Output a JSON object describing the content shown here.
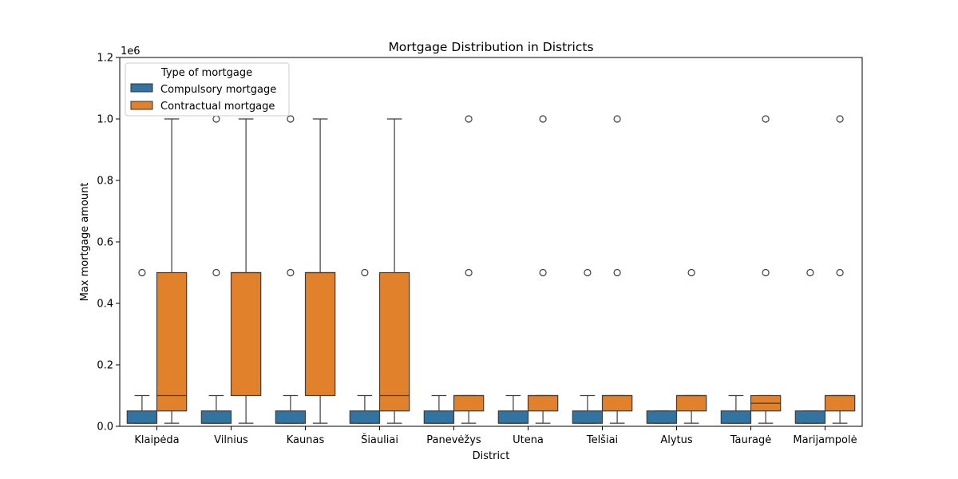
{
  "chart_data": {
    "type": "box",
    "title": "Mortgage Distribution in Districts",
    "xlabel": "District",
    "ylabel": "Max mortgage amount",
    "y_offset_label": "1e6",
    "ylim": [
      0,
      1.2
    ],
    "yticks": [
      "0.0",
      "0.2",
      "0.4",
      "0.6",
      "0.8",
      "1.0",
      "1.2"
    ],
    "legend": {
      "title": "Type of mortgage",
      "position": "upper-left"
    },
    "categories": [
      "Klaipėda",
      "Vilnius",
      "Kaunas",
      "Šiauliai",
      "Panevėžys",
      "Utena",
      "Telšiai",
      "Alytus",
      "Tauragė",
      "Marijampolė"
    ],
    "series": [
      {
        "name": "Compulsory mortgage",
        "color": "#3274a1",
        "boxes": [
          {
            "whisker_low": 0.01,
            "q1": 0.01,
            "median": 0.01,
            "q3": 0.05,
            "whisker_high": 0.1,
            "outliers": [
              0.5
            ]
          },
          {
            "whisker_low": 0.01,
            "q1": 0.01,
            "median": 0.01,
            "q3": 0.05,
            "whisker_high": 0.1,
            "outliers": [
              0.5,
              1.0
            ]
          },
          {
            "whisker_low": 0.01,
            "q1": 0.01,
            "median": 0.01,
            "q3": 0.05,
            "whisker_high": 0.1,
            "outliers": [
              0.5,
              1.0
            ]
          },
          {
            "whisker_low": 0.01,
            "q1": 0.01,
            "median": 0.01,
            "q3": 0.05,
            "whisker_high": 0.1,
            "outliers": [
              0.5
            ]
          },
          {
            "whisker_low": 0.01,
            "q1": 0.01,
            "median": 0.01,
            "q3": 0.05,
            "whisker_high": 0.1,
            "outliers": []
          },
          {
            "whisker_low": 0.01,
            "q1": 0.01,
            "median": 0.01,
            "q3": 0.05,
            "whisker_high": 0.1,
            "outliers": []
          },
          {
            "whisker_low": 0.01,
            "q1": 0.01,
            "median": 0.01,
            "q3": 0.05,
            "whisker_high": 0.1,
            "outliers": [
              0.5
            ]
          },
          {
            "whisker_low": 0.01,
            "q1": 0.01,
            "median": 0.01,
            "q3": 0.05,
            "whisker_high": 0.05,
            "outliers": []
          },
          {
            "whisker_low": 0.01,
            "q1": 0.01,
            "median": 0.01,
            "q3": 0.05,
            "whisker_high": 0.1,
            "outliers": []
          },
          {
            "whisker_low": 0.01,
            "q1": 0.01,
            "median": 0.01,
            "q3": 0.05,
            "whisker_high": 0.05,
            "outliers": [
              0.5
            ]
          }
        ]
      },
      {
        "name": "Contractual mortgage",
        "color": "#e1812c",
        "boxes": [
          {
            "whisker_low": 0.01,
            "q1": 0.05,
            "median": 0.1,
            "q3": 0.5,
            "whisker_high": 1.0,
            "outliers": []
          },
          {
            "whisker_low": 0.01,
            "q1": 0.1,
            "median": 0.5,
            "q3": 0.5,
            "whisker_high": 1.0,
            "outliers": []
          },
          {
            "whisker_low": 0.01,
            "q1": 0.1,
            "median": 0.5,
            "q3": 0.5,
            "whisker_high": 1.0,
            "outliers": []
          },
          {
            "whisker_low": 0.01,
            "q1": 0.05,
            "median": 0.1,
            "q3": 0.5,
            "whisker_high": 1.0,
            "outliers": []
          },
          {
            "whisker_low": 0.01,
            "q1": 0.05,
            "median": 0.1,
            "q3": 0.1,
            "whisker_high": 0.1,
            "outliers": [
              0.5,
              1.0
            ]
          },
          {
            "whisker_low": 0.01,
            "q1": 0.05,
            "median": 0.1,
            "q3": 0.1,
            "whisker_high": 0.1,
            "outliers": [
              0.5,
              1.0
            ]
          },
          {
            "whisker_low": 0.01,
            "q1": 0.05,
            "median": 0.1,
            "q3": 0.1,
            "whisker_high": 0.1,
            "outliers": [
              0.5,
              1.0
            ]
          },
          {
            "whisker_low": 0.01,
            "q1": 0.05,
            "median": 0.1,
            "q3": 0.1,
            "whisker_high": 0.1,
            "outliers": [
              0.5
            ]
          },
          {
            "whisker_low": 0.01,
            "q1": 0.05,
            "median": 0.075,
            "q3": 0.1,
            "whisker_high": 0.1,
            "outliers": [
              0.5,
              1.0
            ]
          },
          {
            "whisker_low": 0.01,
            "q1": 0.05,
            "median": 0.1,
            "q3": 0.1,
            "whisker_high": 0.1,
            "outliers": [
              0.5,
              1.0
            ]
          }
        ]
      }
    ]
  }
}
